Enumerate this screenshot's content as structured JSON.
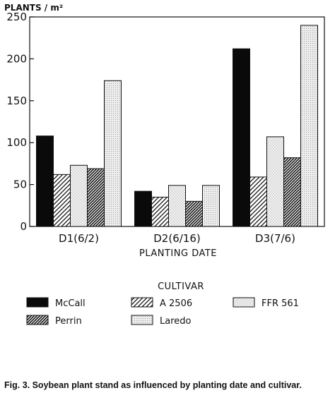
{
  "chart_data": {
    "type": "bar",
    "ylabel": "PLANTS / m²",
    "xlabel": "PLANTING DATE",
    "categories": [
      "D1(6/2)",
      "D2(6/16)",
      "D3(7/6)"
    ],
    "yticks": [
      0,
      50,
      100,
      150,
      200,
      250
    ],
    "ylim": [
      0,
      250
    ],
    "grid": false,
    "legend_title": "CULTIVAR",
    "legend_position": "bottom",
    "series": [
      {
        "name": "McCall",
        "pattern": "solid-black",
        "values": [
          108,
          42,
          212
        ]
      },
      {
        "name": "A 2506",
        "pattern": "diagonal-hatch",
        "values": [
          62,
          35,
          59
        ]
      },
      {
        "name": "FFR 561",
        "pattern": "light-stipple",
        "values": [
          73,
          49,
          107
        ]
      },
      {
        "name": "Perrin",
        "pattern": "dense-diagonal-hatch",
        "values": [
          69,
          30,
          82
        ]
      },
      {
        "name": "Laredo",
        "pattern": "fine-stipple",
        "values": [
          174,
          49,
          240
        ]
      }
    ],
    "caption": "Fig. 3. Soybean plant stand as influenced by  planting date and cultivar."
  }
}
